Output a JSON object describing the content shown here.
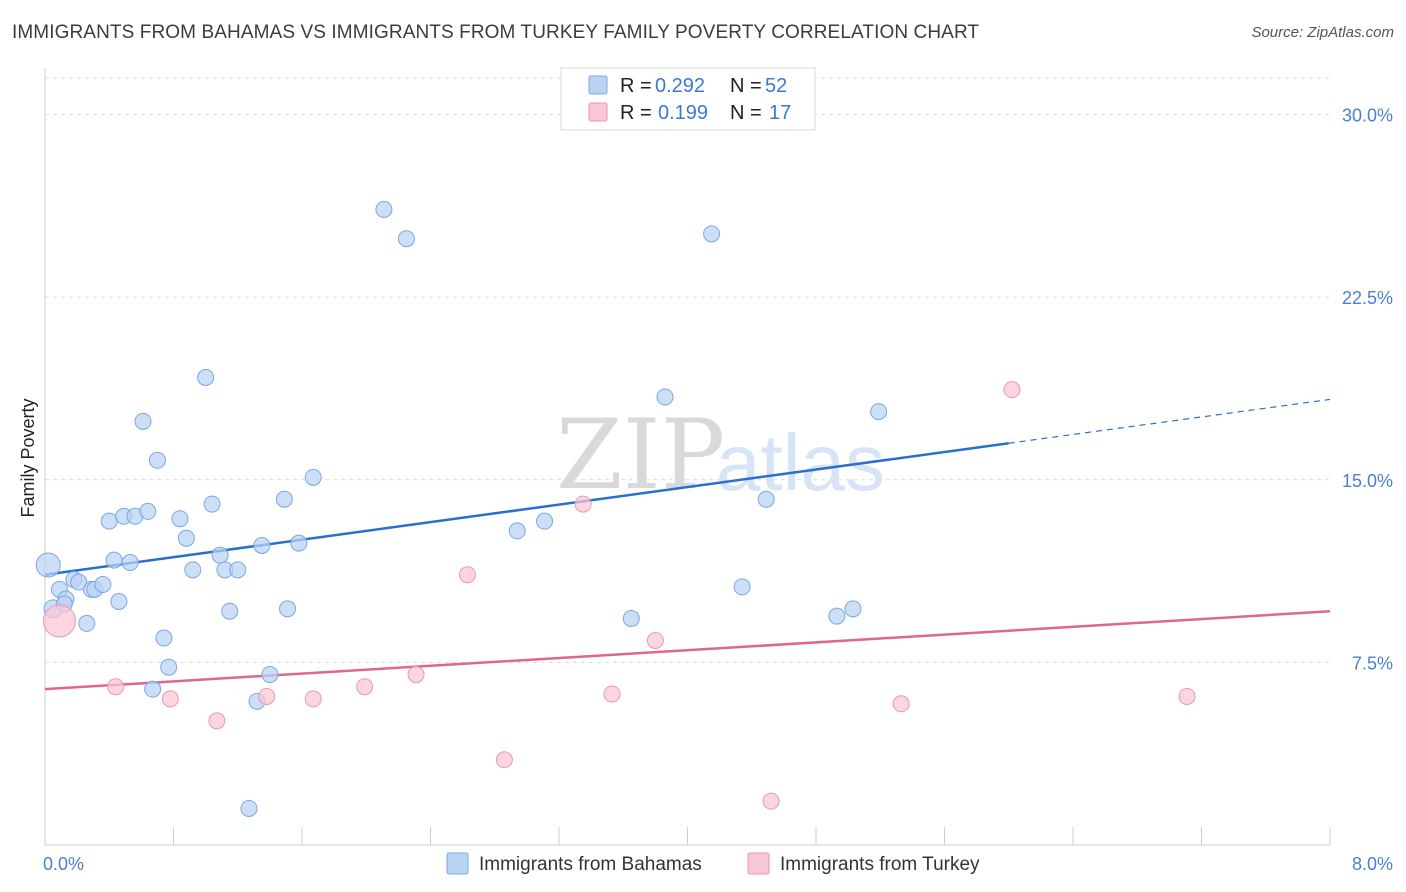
{
  "header": {
    "title": "IMMIGRANTS FROM BAHAMAS VS IMMIGRANTS FROM TURKEY FAMILY POVERTY CORRELATION CHART",
    "source": "Source: ZipAtlas.com"
  },
  "watermark": {
    "zip": "ZIP",
    "atlas": "atlas"
  },
  "colors": {
    "bahamas_fill": "#b9d3f3",
    "bahamas_stroke": "#7aa7e3",
    "bahamas_line": "#2a6fd0",
    "turkey_fill": "#f9c6d5",
    "turkey_stroke": "#ec96b3",
    "turkey_line": "#e06591",
    "grid": "#dcdcdc",
    "tick_text": "#4a7fd6"
  },
  "legend": {
    "rows": [
      {
        "r_label": "R =",
        "r_value": "0.292",
        "n_label": "N =",
        "n_value": "52"
      },
      {
        "r_label": "R =",
        "r_value": "0.199",
        "n_label": "N =",
        "n_value": "17"
      }
    ]
  },
  "bottom_legend": {
    "items": [
      {
        "label": "Immigrants from Bahamas"
      },
      {
        "label": "Immigrants from Turkey"
      }
    ]
  },
  "chart_data": {
    "type": "scatter",
    "title": "IMMIGRANTS FROM BAHAMAS VS IMMIGRANTS FROM TURKEY FAMILY POVERTY CORRELATION CHART",
    "xlabel": "",
    "ylabel": "Family Poverty",
    "xlim": [
      0,
      8
    ],
    "ylim": [
      0,
      31.5
    ],
    "x_tick_labels": [
      {
        "value": 0,
        "label": "0.0%"
      },
      {
        "value": 8,
        "label": "8.0%"
      }
    ],
    "x_minor_ticks": [
      0.8,
      1.6,
      2.4,
      3.2,
      4.0,
      4.8,
      5.6,
      6.4,
      7.2
    ],
    "y_ticks": [
      {
        "value": 7.5,
        "label": "7.5%"
      },
      {
        "value": 15.0,
        "label": "15.0%"
      },
      {
        "value": 22.5,
        "label": "22.5%"
      },
      {
        "value": 30.0,
        "label": "30.0%"
      }
    ],
    "grid": true,
    "series": [
      {
        "name": "Immigrants from Bahamas",
        "R": 0.292,
        "N": 52,
        "trend": {
          "x0": 0,
          "y0": 11.1,
          "x1": 6.0,
          "y1": 16.5,
          "dash_to_x": 8.0,
          "dash_to_y": 18.3
        },
        "points": [
          [
            0.02,
            11.5,
            12
          ],
          [
            0.05,
            9.7,
            9
          ],
          [
            0.09,
            10.5,
            8
          ],
          [
            0.13,
            10.1,
            8
          ],
          [
            0.18,
            10.9,
            8
          ],
          [
            0.21,
            10.8,
            8
          ],
          [
            0.26,
            9.1,
            8
          ],
          [
            0.29,
            10.5,
            8
          ],
          [
            0.31,
            10.5,
            8
          ],
          [
            0.36,
            10.7,
            8
          ],
          [
            0.4,
            13.3,
            8
          ],
          [
            0.43,
            11.7,
            8
          ],
          [
            0.46,
            10.0,
            8
          ],
          [
            0.49,
            13.5,
            8
          ],
          [
            0.53,
            11.6,
            8
          ],
          [
            0.56,
            13.5,
            8
          ],
          [
            0.61,
            17.4,
            8
          ],
          [
            0.64,
            13.7,
            8
          ],
          [
            0.67,
            6.4,
            8
          ],
          [
            0.7,
            15.8,
            8
          ],
          [
            0.74,
            8.5,
            8
          ],
          [
            0.77,
            7.3,
            8
          ],
          [
            0.84,
            13.4,
            8
          ],
          [
            0.88,
            12.6,
            8
          ],
          [
            0.92,
            11.3,
            8
          ],
          [
            1.0,
            19.2,
            8
          ],
          [
            1.04,
            14.0,
            8
          ],
          [
            1.09,
            11.9,
            8
          ],
          [
            1.12,
            11.3,
            8
          ],
          [
            1.15,
            9.6,
            8
          ],
          [
            1.2,
            11.3,
            8
          ],
          [
            1.27,
            1.5,
            8
          ],
          [
            1.32,
            5.9,
            8
          ],
          [
            1.35,
            12.3,
            8
          ],
          [
            1.4,
            7.0,
            8
          ],
          [
            1.49,
            14.2,
            8
          ],
          [
            1.51,
            9.7,
            8
          ],
          [
            1.58,
            12.4,
            8
          ],
          [
            1.67,
            15.1,
            8
          ],
          [
            2.11,
            26.1,
            8
          ],
          [
            2.25,
            24.9,
            8
          ],
          [
            2.94,
            12.9,
            8
          ],
          [
            3.11,
            13.3,
            8
          ],
          [
            3.65,
            9.3,
            8
          ],
          [
            3.86,
            18.4,
            8
          ],
          [
            4.15,
            25.1,
            8
          ],
          [
            4.34,
            10.6,
            8
          ],
          [
            4.49,
            14.2,
            8
          ],
          [
            4.93,
            9.4,
            8
          ],
          [
            5.03,
            9.7,
            8
          ],
          [
            5.19,
            17.8,
            8
          ],
          [
            0.12,
            9.9,
            8
          ]
        ]
      },
      {
        "name": "Immigrants from Turkey",
        "R": 0.199,
        "N": 17,
        "trend": {
          "x0": 0,
          "y0": 6.4,
          "x1": 8.0,
          "y1": 9.6
        },
        "points": [
          [
            0.09,
            9.2,
            16
          ],
          [
            0.44,
            6.5,
            8
          ],
          [
            0.78,
            6.0,
            8
          ],
          [
            1.07,
            5.1,
            8
          ],
          [
            1.38,
            6.1,
            8
          ],
          [
            1.67,
            6.0,
            8
          ],
          [
            1.99,
            6.5,
            8
          ],
          [
            2.31,
            7.0,
            8
          ],
          [
            2.63,
            11.1,
            8
          ],
          [
            2.86,
            3.5,
            8
          ],
          [
            3.35,
            14.0,
            8
          ],
          [
            3.53,
            6.2,
            8
          ],
          [
            3.8,
            8.4,
            8
          ],
          [
            4.52,
            1.8,
            8
          ],
          [
            5.33,
            5.8,
            8
          ],
          [
            6.02,
            18.7,
            8
          ],
          [
            7.11,
            6.1,
            8
          ]
        ]
      }
    ]
  }
}
